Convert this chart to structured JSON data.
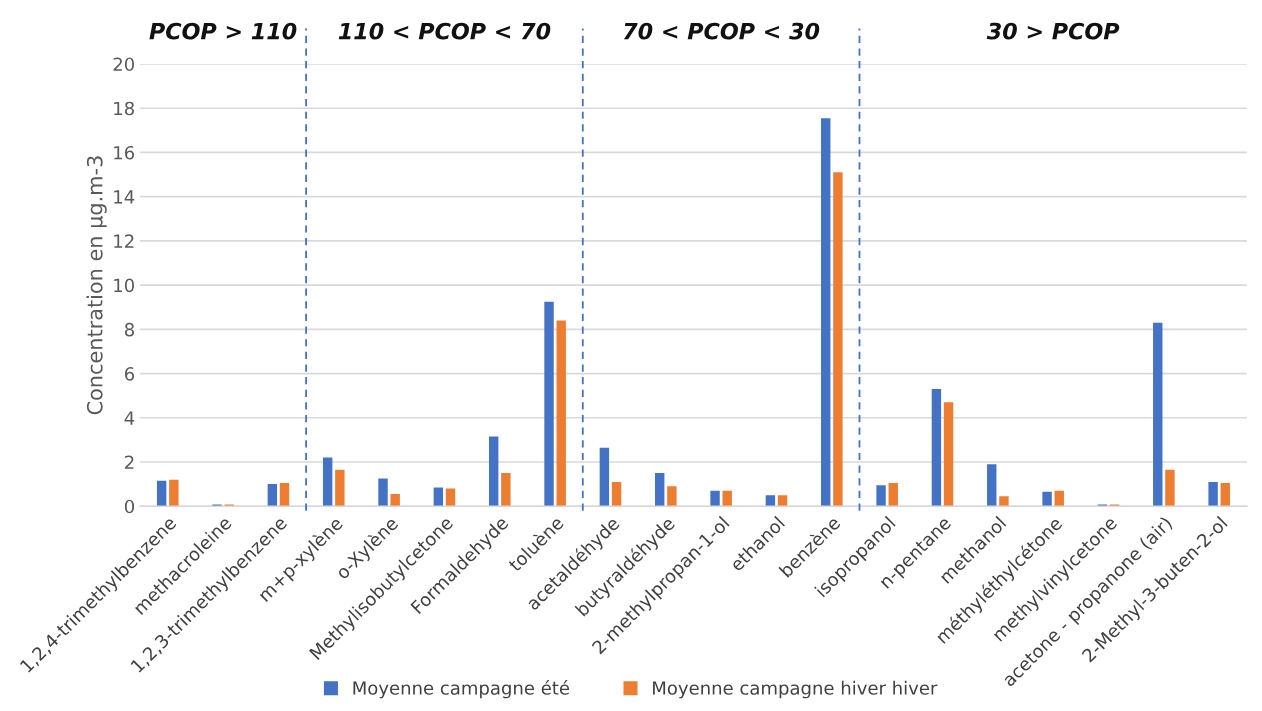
{
  "chart_data": {
    "type": "bar",
    "ylabel": "Concentration en µg.m-3",
    "categories": [
      "1,2,4-trimethylbenzene",
      "methacroleine",
      "1,2,3-trimethylbenzene",
      "m+p-xylène",
      "o-Xylène",
      "Methylisobutylcetone",
      "Formaldehyde",
      "toluène",
      "acetaldéhyde",
      "butyraldéhyde",
      "2-methylpropan-1-ol",
      "ethanol",
      "benzène",
      "isopropanol",
      "n-pentane",
      "methanol",
      "méthyléthylcétone",
      "methylvinylcetone",
      "acetone - propanone (air)",
      "2-Methyl-3-buten-2-ol"
    ],
    "series": [
      {
        "name": "Moyenne campagne été",
        "color": "#4472c4",
        "values": [
          1.15,
          0.08,
          1.0,
          2.2,
          1.25,
          0.85,
          3.15,
          9.25,
          2.65,
          1.5,
          0.7,
          0.5,
          17.55,
          0.95,
          5.3,
          1.9,
          0.65,
          0.08,
          8.3,
          1.1
        ]
      },
      {
        "name": "Moyenne campagne hiver hiver",
        "color": "#ed7d31",
        "values": [
          1.2,
          0.08,
          1.05,
          1.65,
          0.55,
          0.8,
          1.5,
          8.4,
          1.1,
          0.9,
          0.7,
          0.5,
          15.1,
          1.05,
          4.7,
          0.45,
          0.7,
          0.08,
          1.65,
          1.05
        ]
      }
    ],
    "ylim": [
      0,
      20
    ],
    "yticks": [
      0,
      2,
      4,
      6,
      8,
      10,
      12,
      14,
      16,
      18,
      20
    ],
    "grid": "y",
    "legend": "bottom",
    "annotations": [
      "PCOP > 110",
      "110 < PCOP < 70",
      "70 < PCOP < 30",
      "30 > PCOP"
    ]
  }
}
